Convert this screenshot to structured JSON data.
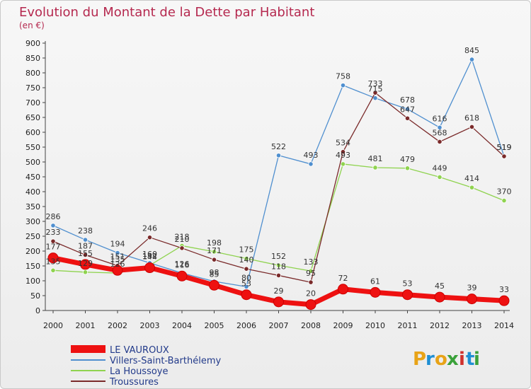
{
  "chart_data": {
    "type": "line",
    "title": "Evolution du Montant de la Dette par Habitant",
    "subtitle": "(en €)",
    "x": [
      "2000",
      "2001",
      "2002",
      "2003",
      "2004",
      "2005",
      "2006",
      "2007",
      "2008",
      "2009",
      "2010",
      "2011",
      "2012",
      "2013",
      "2014"
    ],
    "ylim": [
      0,
      900
    ],
    "yticks": [
      "0",
      "50",
      "100",
      "150",
      "200",
      "250",
      "300",
      "350",
      "400",
      "450",
      "500",
      "550",
      "600",
      "650",
      "700",
      "750",
      "800",
      "850",
      "900"
    ],
    "grid": false,
    "legend_position": "bottom-left",
    "series": [
      {
        "name": "LE VAUROUX",
        "color": "#ee1111",
        "values": [
          177,
          155,
          135,
          144,
          116,
          85,
          53,
          29,
          20,
          72,
          61,
          53,
          45,
          39,
          33
        ],
        "labels": [
          "177",
          "155",
          "135",
          "144",
          "116",
          "85",
          "53",
          "29",
          "20",
          "72",
          "61",
          "53",
          "45",
          "39",
          "33"
        ]
      },
      {
        "name": "Villers-Saint-Barthélemy",
        "color": "#4f8fcf",
        "values": [
          286,
          238,
          194,
          160,
          126,
          98,
          80,
          522,
          493,
          758,
          715,
          678,
          616,
          845,
          519
        ],
        "labels": [
          "286",
          "238",
          "194",
          "160",
          "126",
          "98",
          "80",
          "522",
          "493",
          "758",
          "715",
          "678",
          "616",
          "845",
          "519"
        ]
      },
      {
        "name": "La Houssoye",
        "color": "#8fd34f",
        "values": [
          135,
          129,
          126,
          152,
          218,
          198,
          175,
          152,
          133,
          493,
          481,
          479,
          449,
          414,
          370
        ],
        "labels": [
          "135",
          "129",
          "126",
          "152",
          "218",
          "198",
          "175",
          "152",
          "133",
          "493",
          "481",
          "479",
          "449",
          "414",
          "370"
        ]
      },
      {
        "name": "Troussures",
        "color": "#7a2a2a",
        "values": [
          233,
          187,
          151,
          246,
          210,
          171,
          140,
          118,
          95,
          534,
          733,
          647,
          568,
          618,
          519
        ],
        "labels": [
          "233",
          "187",
          "151",
          "246",
          "210",
          "171",
          "140",
          "118",
          "95",
          "534",
          "733",
          "647",
          "568",
          "618",
          "519"
        ]
      }
    ]
  },
  "logo": {
    "letters": [
      "P",
      "r",
      "o",
      "x",
      "i",
      "t",
      "i"
    ],
    "colors": [
      "#e8a317",
      "#1f8fd3",
      "#e8a317",
      "#3aa13a",
      "#d0312d",
      "#1f8fd3",
      "#3aa13a"
    ]
  }
}
